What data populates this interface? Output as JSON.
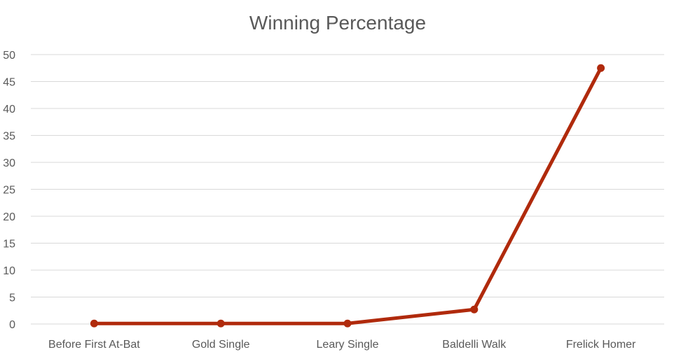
{
  "chart_data": {
    "type": "line",
    "title": "Winning Percentage",
    "xlabel": "",
    "ylabel": "",
    "categories": [
      "Before First At-Bat",
      "Gold Single",
      "Leary Single",
      "Baldelli Walk",
      "Frelick Homer"
    ],
    "series": [
      {
        "values": [
          0.1,
          0.1,
          0.1,
          2.7,
          47.5
        ],
        "color": "#b02a0c"
      }
    ],
    "ylim": [
      0,
      50
    ],
    "yticks": [
      0,
      5,
      10,
      15,
      20,
      25,
      30,
      35,
      40,
      45,
      50
    ],
    "grid": true,
    "legend": "none"
  }
}
